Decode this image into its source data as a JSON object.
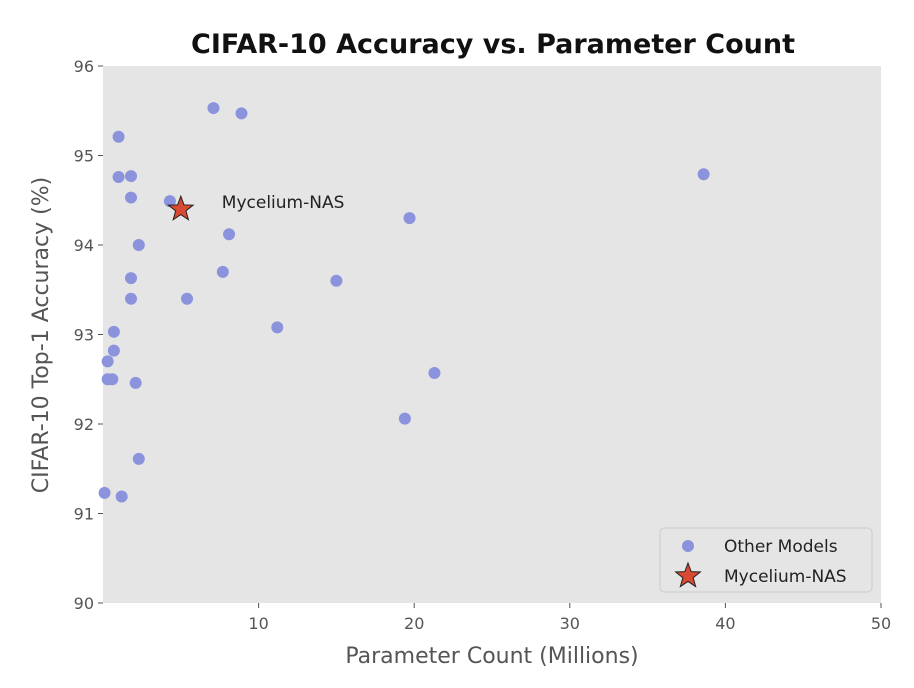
{
  "chart_data": {
    "type": "scatter",
    "title": "CIFAR-10 Accuracy vs. Parameter Count",
    "xlabel": "Parameter Count (Millions)",
    "ylabel": "CIFAR-10 Top-1 Accuracy (%)",
    "xlim": [
      0,
      50
    ],
    "ylim": [
      90,
      96
    ],
    "xticks": [
      10,
      20,
      30,
      40,
      50
    ],
    "yticks": [
      90,
      91,
      92,
      93,
      94,
      95,
      96
    ],
    "grid": false,
    "background": "#e5e5e5",
    "legend_position": "bottom-right",
    "series": [
      {
        "name": "Other Models",
        "marker": "circle",
        "color": "#8b93dd",
        "points": [
          [
            7.1,
            95.53
          ],
          [
            8.9,
            95.47
          ],
          [
            1.0,
            95.21
          ],
          [
            1.0,
            94.76
          ],
          [
            1.8,
            94.77
          ],
          [
            38.6,
            94.79
          ],
          [
            1.8,
            94.53
          ],
          [
            4.3,
            94.49
          ],
          [
            19.7,
            94.3
          ],
          [
            8.1,
            94.12
          ],
          [
            2.3,
            94.0
          ],
          [
            7.7,
            93.7
          ],
          [
            1.8,
            93.63
          ],
          [
            15.0,
            93.6
          ],
          [
            1.8,
            93.4
          ],
          [
            5.4,
            93.4
          ],
          [
            11.2,
            93.08
          ],
          [
            0.7,
            93.03
          ],
          [
            0.7,
            92.82
          ],
          [
            0.3,
            92.7
          ],
          [
            0.3,
            92.5
          ],
          [
            0.6,
            92.5
          ],
          [
            2.1,
            92.46
          ],
          [
            21.3,
            92.57
          ],
          [
            19.4,
            92.06
          ],
          [
            2.3,
            91.61
          ],
          [
            0.1,
            91.23
          ],
          [
            1.2,
            91.19
          ]
        ]
      },
      {
        "name": "Mycelium-NAS",
        "marker": "star",
        "color": "#d94a32",
        "points": [
          [
            5.0,
            94.4
          ]
        ]
      }
    ],
    "annotations": [
      {
        "text": "Mycelium-NAS",
        "x": 5.0,
        "y": 94.4
      }
    ],
    "legend": [
      "Other Models",
      "Mycelium-NAS"
    ]
  }
}
